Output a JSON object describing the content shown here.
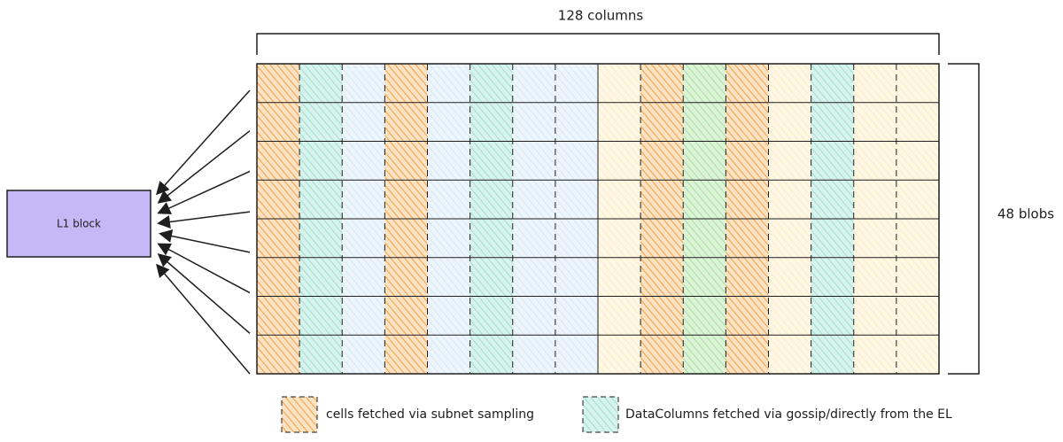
{
  "title": "128 columns",
  "side_label": "48 blobs",
  "block": {
    "label": "L1 block"
  },
  "legend": [
    {
      "label": "cells fetched via subnet sampling"
    },
    {
      "label": "DataColumns fetched via gossip/directly from the EL"
    }
  ]
}
